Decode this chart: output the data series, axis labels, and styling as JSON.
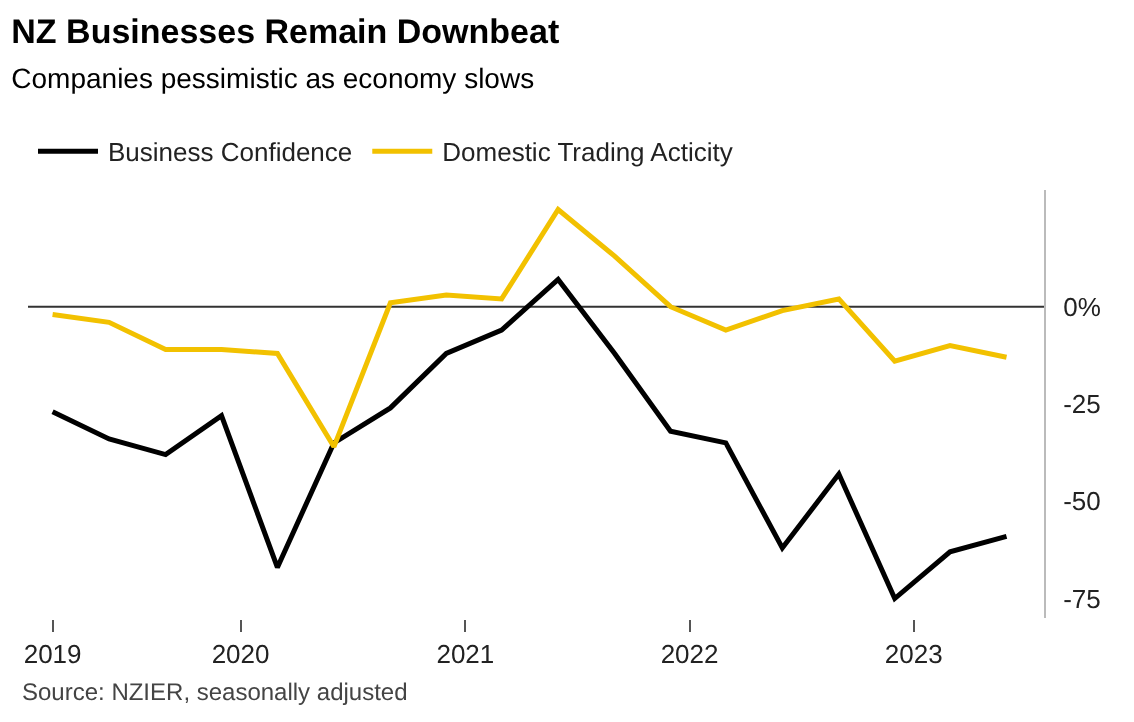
{
  "chart_data": {
    "type": "line",
    "title": "NZ Businesses Remain Downbeat",
    "subtitle": "Companies pessimistic as economy slows",
    "x": [
      "2019-03",
      "2019-06",
      "2019-09",
      "2019-12",
      "2020-03",
      "2020-06",
      "2020-09",
      "2020-12",
      "2021-03",
      "2021-06",
      "2021-09",
      "2021-12",
      "2022-03",
      "2022-06",
      "2022-09",
      "2022-12",
      "2023-03",
      "2023-06"
    ],
    "series": [
      {
        "name": "Business Confidence",
        "color": "#000000",
        "values": [
          -27,
          -34,
          -38,
          -28,
          -67,
          -35,
          -26,
          -12,
          -6,
          7,
          -12,
          -32,
          -35,
          -62,
          -43,
          -75,
          -63,
          -59
        ]
      },
      {
        "name": "Domestic Trading Acticity",
        "color": "#f2c100",
        "values": [
          -2,
          -4,
          -11,
          -11,
          -12,
          -36,
          1,
          3,
          2,
          25,
          13,
          0,
          -6,
          -1,
          2,
          -14,
          -10,
          -13
        ]
      }
    ],
    "xlim": [
      "2019-01-20",
      "2023-08-01"
    ],
    "xticks": [
      {
        "value": "2019-03",
        "label": "2019"
      },
      {
        "value": "2020-01",
        "label": "2020"
      },
      {
        "value": "2021-01",
        "label": "2021"
      },
      {
        "value": "2022-01",
        "label": "2022"
      },
      {
        "value": "2023-01",
        "label": "2023"
      }
    ],
    "ylim": [
      -80,
      30
    ],
    "yticks": [
      {
        "value": 0,
        "label": "0%"
      },
      -25,
      -50,
      -75
    ],
    "ref_lines": [
      {
        "axis": "y",
        "value": 0,
        "color": "#333333"
      }
    ],
    "grid": false,
    "legend": "top left",
    "marker": "none",
    "line_style": "solid",
    "annotations": [
      "Source: NZIER, seasonally adjusted"
    ]
  }
}
